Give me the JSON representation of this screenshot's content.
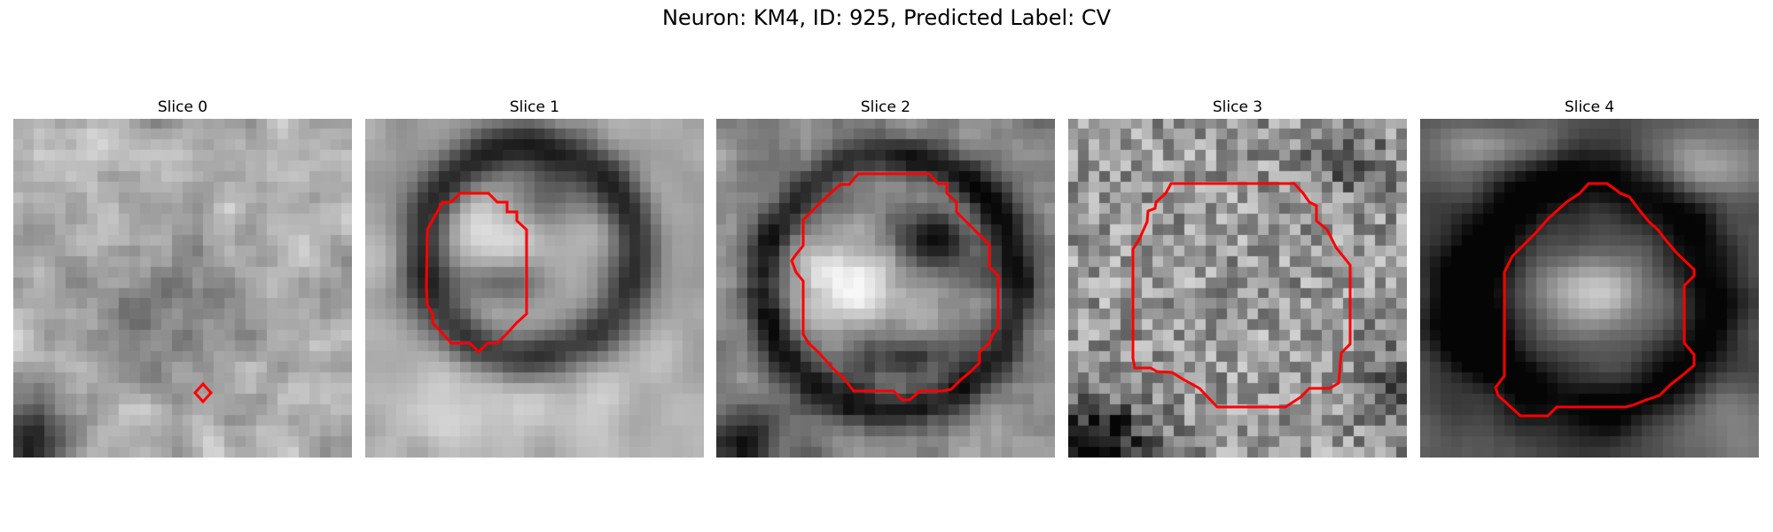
{
  "figure": {
    "title": "Neuron: KM4, ID: 925, Predicted Label: CV",
    "contour_color": "#ff0000",
    "grid_size": 32
  },
  "panels": [
    {
      "title": "Slice 0"
    },
    {
      "title": "Slice 1"
    },
    {
      "title": "Slice 2"
    },
    {
      "title": "Slice 3"
    },
    {
      "title": "Slice 4"
    }
  ]
}
